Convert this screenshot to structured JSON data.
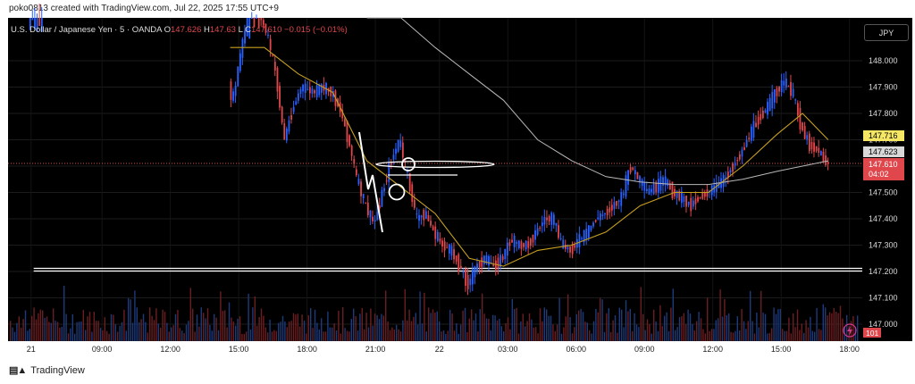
{
  "header": {
    "text": "poko0813 created with TradingView.com, Jul 22, 2025 17:55 UTC+9"
  },
  "symbol": {
    "title": "U.S. Dollar / Japanese Yen · 5 · OANDA",
    "o_label": "O",
    "o_value": "147.626",
    "h_label": "H",
    "h_value": "147.63",
    "l_label": "L",
    "c_label": "C",
    "c_value": "147.610",
    "change": "−0.015 (−0.01%)"
  },
  "currency_button": "JPY",
  "footer": {
    "brand": "TradingView"
  },
  "colors": {
    "background": "#000000",
    "up": "#2962ff",
    "down": "#e0474c",
    "ma_fast": "#c8a020",
    "ma_slow": "#b8b8b8",
    "last_price_bg": "#e0474c",
    "ma_label_bg": "#f5e663"
  },
  "chart_data": {
    "type": "candlestick",
    "title": "U.S. Dollar / Japanese Yen · 5 · OANDA",
    "ylim": [
      147.0,
      148.25
    ],
    "y_ticks": [
      "148.000",
      "147.900",
      "147.800",
      "147.700",
      "147.600",
      "147.500",
      "147.400",
      "147.300",
      "147.200",
      "147.100",
      "147.000"
    ],
    "x_ticks": [
      "21",
      "09:00",
      "12:00",
      "15:00",
      "18:00",
      "21:00",
      "22",
      "03:00",
      "06:00",
      "09:00",
      "12:00",
      "15:00",
      "18:00"
    ],
    "price_labels": {
      "ma_label": "147.716",
      "ma_label2": "147.623",
      "last_price": "147.610",
      "countdown": "04:02"
    },
    "indicator_label": "101",
    "price_path": [
      [
        0.0,
        147.98
      ],
      [
        0.01,
        148.02
      ],
      [
        0.02,
        148.1
      ],
      [
        0.03,
        148.22
      ],
      [
        0.05,
        148.26
      ],
      [
        0.08,
        148.26
      ],
      [
        0.12,
        148.26
      ],
      [
        0.16,
        148.26
      ],
      [
        0.2,
        148.26
      ],
      [
        0.24,
        148.22
      ],
      [
        0.255,
        147.95
      ],
      [
        0.265,
        147.85
      ],
      [
        0.275,
        148.05
      ],
      [
        0.285,
        148.2
      ],
      [
        0.295,
        148.18
      ],
      [
        0.305,
        148.1
      ],
      [
        0.315,
        147.95
      ],
      [
        0.325,
        147.7
      ],
      [
        0.335,
        147.82
      ],
      [
        0.345,
        147.9
      ],
      [
        0.36,
        147.88
      ],
      [
        0.37,
        147.9
      ],
      [
        0.38,
        147.88
      ],
      [
        0.39,
        147.82
      ],
      [
        0.4,
        147.7
      ],
      [
        0.41,
        147.55
      ],
      [
        0.42,
        147.45
      ],
      [
        0.43,
        147.38
      ],
      [
        0.44,
        147.5
      ],
      [
        0.45,
        147.62
      ],
      [
        0.46,
        147.7
      ],
      [
        0.47,
        147.55
      ],
      [
        0.48,
        147.4
      ],
      [
        0.49,
        147.42
      ],
      [
        0.5,
        147.35
      ],
      [
        0.51,
        147.3
      ],
      [
        0.52,
        147.28
      ],
      [
        0.53,
        147.22
      ],
      [
        0.54,
        147.15
      ],
      [
        0.55,
        147.22
      ],
      [
        0.56,
        147.25
      ],
      [
        0.57,
        147.22
      ],
      [
        0.58,
        147.25
      ],
      [
        0.59,
        147.32
      ],
      [
        0.6,
        147.3
      ],
      [
        0.61,
        147.3
      ],
      [
        0.62,
        147.35
      ],
      [
        0.63,
        147.4
      ],
      [
        0.64,
        147.4
      ],
      [
        0.65,
        147.3
      ],
      [
        0.66,
        147.28
      ],
      [
        0.67,
        147.32
      ],
      [
        0.68,
        147.35
      ],
      [
        0.69,
        147.4
      ],
      [
        0.7,
        147.42
      ],
      [
        0.71,
        147.45
      ],
      [
        0.72,
        147.48
      ],
      [
        0.73,
        147.6
      ],
      [
        0.74,
        147.55
      ],
      [
        0.75,
        147.5
      ],
      [
        0.76,
        147.52
      ],
      [
        0.77,
        147.55
      ],
      [
        0.78,
        147.5
      ],
      [
        0.79,
        147.48
      ],
      [
        0.8,
        147.45
      ],
      [
        0.81,
        147.48
      ],
      [
        0.82,
        147.5
      ],
      [
        0.83,
        147.52
      ],
      [
        0.84,
        147.55
      ],
      [
        0.85,
        147.6
      ],
      [
        0.86,
        147.65
      ],
      [
        0.87,
        147.72
      ],
      [
        0.88,
        147.78
      ],
      [
        0.89,
        147.82
      ],
      [
        0.9,
        147.88
      ],
      [
        0.91,
        147.92
      ],
      [
        0.92,
        147.88
      ],
      [
        0.93,
        147.75
      ],
      [
        0.94,
        147.68
      ],
      [
        0.95,
        147.66
      ],
      [
        0.96,
        147.61
      ]
    ],
    "ma_fast": [
      [
        0.26,
        148.05
      ],
      [
        0.3,
        148.05
      ],
      [
        0.34,
        147.95
      ],
      [
        0.38,
        147.88
      ],
      [
        0.42,
        147.62
      ],
      [
        0.46,
        147.52
      ],
      [
        0.5,
        147.42
      ],
      [
        0.54,
        147.25
      ],
      [
        0.58,
        147.22
      ],
      [
        0.62,
        147.28
      ],
      [
        0.66,
        147.3
      ],
      [
        0.7,
        147.35
      ],
      [
        0.74,
        147.45
      ],
      [
        0.78,
        147.5
      ],
      [
        0.82,
        147.5
      ],
      [
        0.86,
        147.6
      ],
      [
        0.9,
        147.72
      ],
      [
        0.93,
        147.8
      ],
      [
        0.96,
        147.7
      ]
    ],
    "ma_slow": [
      [
        0.42,
        148.26
      ],
      [
        0.46,
        148.18
      ],
      [
        0.5,
        148.05
      ],
      [
        0.54,
        147.95
      ],
      [
        0.58,
        147.85
      ],
      [
        0.62,
        147.7
      ],
      [
        0.66,
        147.62
      ],
      [
        0.7,
        147.56
      ],
      [
        0.74,
        147.54
      ],
      [
        0.78,
        147.53
      ],
      [
        0.82,
        147.53
      ],
      [
        0.86,
        147.55
      ],
      [
        0.9,
        147.58
      ],
      [
        0.93,
        147.6
      ],
      [
        0.96,
        147.62
      ]
    ],
    "horizontal_lines": [
      {
        "price": 147.205,
        "style": "double"
      },
      {
        "price": 147.61,
        "style": "dotted"
      }
    ]
  }
}
